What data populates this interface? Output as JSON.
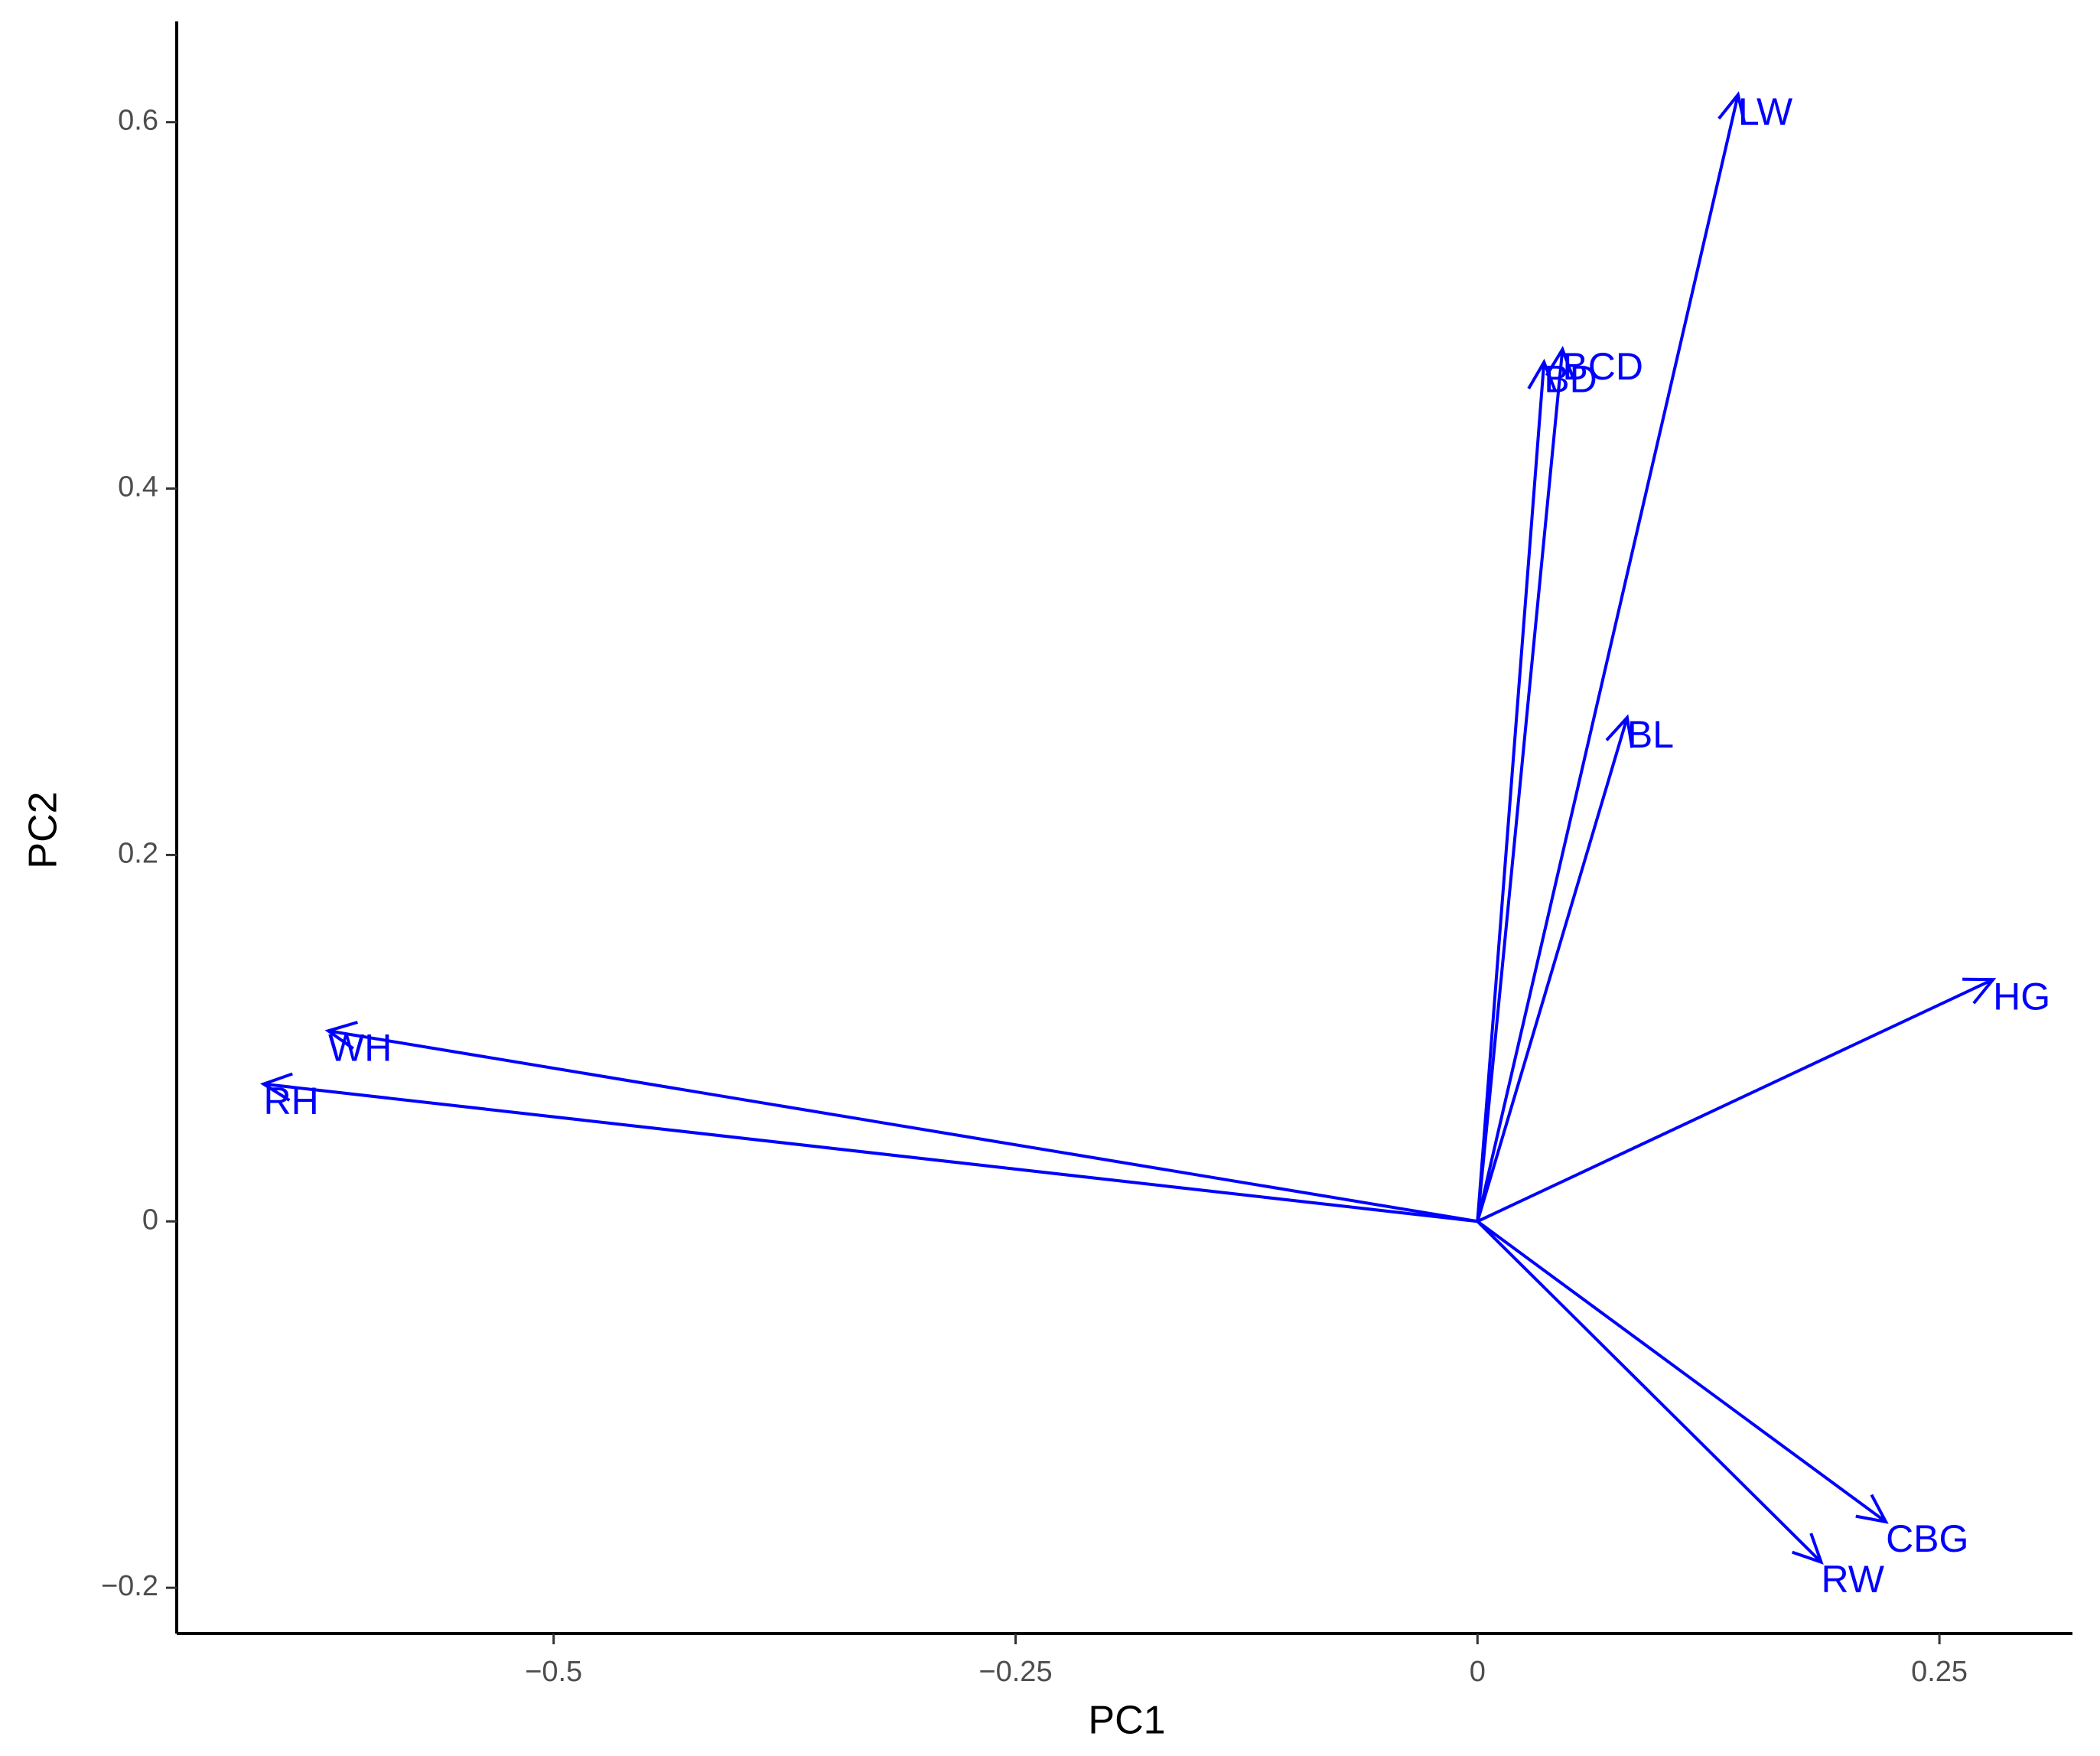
{
  "chart_data": {
    "type": "arrow",
    "x_label": "PC1",
    "y_label": "PC2",
    "labels": [
      "LW",
      "BCD",
      "BD",
      "BL",
      "HG",
      "WH",
      "RH",
      "CBG",
      "RW"
    ],
    "x": [
      0.141,
      0.046,
      0.036,
      0.081,
      0.279,
      -0.622,
      -0.657,
      0.221,
      0.186
    ],
    "values": [
      0.615,
      0.476,
      0.469,
      0.275,
      0.132,
      0.104,
      0.075,
      -0.164,
      -0.186
    ],
    "color": "#0000ff",
    "xlim": [
      -0.704,
      0.322
    ],
    "ylim": [
      -0.225,
      0.655
    ],
    "xticks": [
      {
        "value": -0.5,
        "label": "−0.5"
      },
      {
        "value": -0.25,
        "label": "−0.25"
      },
      0,
      0.25
    ],
    "yticks": [
      {
        "value": -0.2,
        "label": "−0.2"
      },
      0,
      0.2,
      0.4,
      0.6
    ]
  }
}
